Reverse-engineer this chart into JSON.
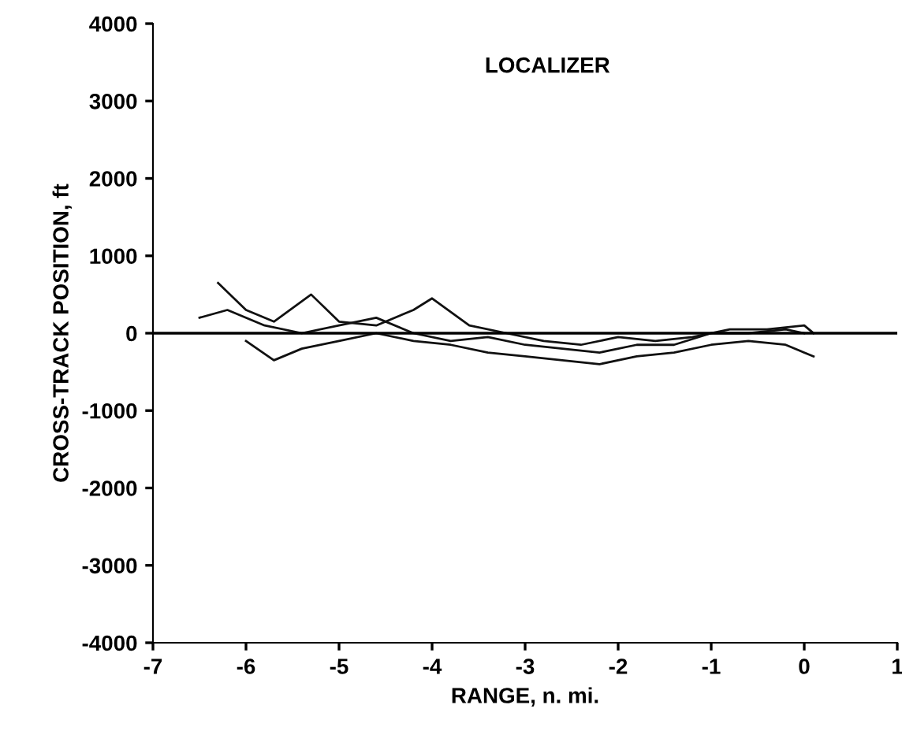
{
  "chart_data": {
    "type": "line",
    "annotations": [
      "LOCALIZER"
    ],
    "xlabel": "RANGE, n. mi.",
    "ylabel": "CROSS-TRACK POSITION, ft",
    "xlim": [
      -7,
      1
    ],
    "xticks": [
      -7,
      -6,
      -5,
      -4,
      -3,
      -2,
      -1,
      0,
      1
    ],
    "ylim": [
      -4000,
      4000
    ],
    "yticks": [
      -4000,
      -3000,
      -2000,
      -1000,
      0,
      1000,
      2000,
      3000,
      4000
    ],
    "grid": false,
    "legend": false,
    "marker": "none",
    "line_style": "solid",
    "ref_lines": [
      {
        "axis": "y",
        "value": 0,
        "color": "#000000"
      }
    ],
    "series": [
      {
        "color": "#111111",
        "x": [
          -6.3,
          -6.0,
          -5.7,
          -5.3,
          -5.0,
          -4.6,
          -4.2,
          -4.0,
          -3.6,
          -3.2,
          -2.8,
          -2.4,
          -2.0,
          -1.6,
          -1.2,
          -0.8,
          -0.4,
          0,
          0.1
        ],
        "values": [
          650,
          300,
          150,
          500,
          150,
          100,
          300,
          450,
          100,
          0,
          -100,
          -150,
          -50,
          -100,
          -50,
          50,
          50,
          100,
          0
        ]
      },
      {
        "color": "#111111",
        "x": [
          -6.0,
          -5.7,
          -5.4,
          -5.0,
          -4.6,
          -4.2,
          -3.8,
          -3.4,
          -3.0,
          -2.6,
          -2.2,
          -1.8,
          -1.4,
          -1.0,
          -0.6,
          -0.2,
          0.1
        ],
        "values": [
          -100,
          -350,
          -200,
          -100,
          0,
          -100,
          -150,
          -250,
          -300,
          -350,
          -400,
          -300,
          -250,
          -150,
          -100,
          -150,
          -300
        ]
      },
      {
        "color": "#111111",
        "x": [
          -6.5,
          -6.2,
          -5.8,
          -5.4,
          -5.0,
          -4.6,
          -4.2,
          -3.8,
          -3.4,
          -3.0,
          -2.6,
          -2.2,
          -1.8,
          -1.4,
          -1.0,
          -0.6,
          -0.2,
          0
        ],
        "values": [
          200,
          300,
          100,
          0,
          100,
          200,
          0,
          -100,
          -50,
          -150,
          -200,
          -250,
          -150,
          -150,
          0,
          0,
          50,
          0
        ]
      }
    ]
  }
}
